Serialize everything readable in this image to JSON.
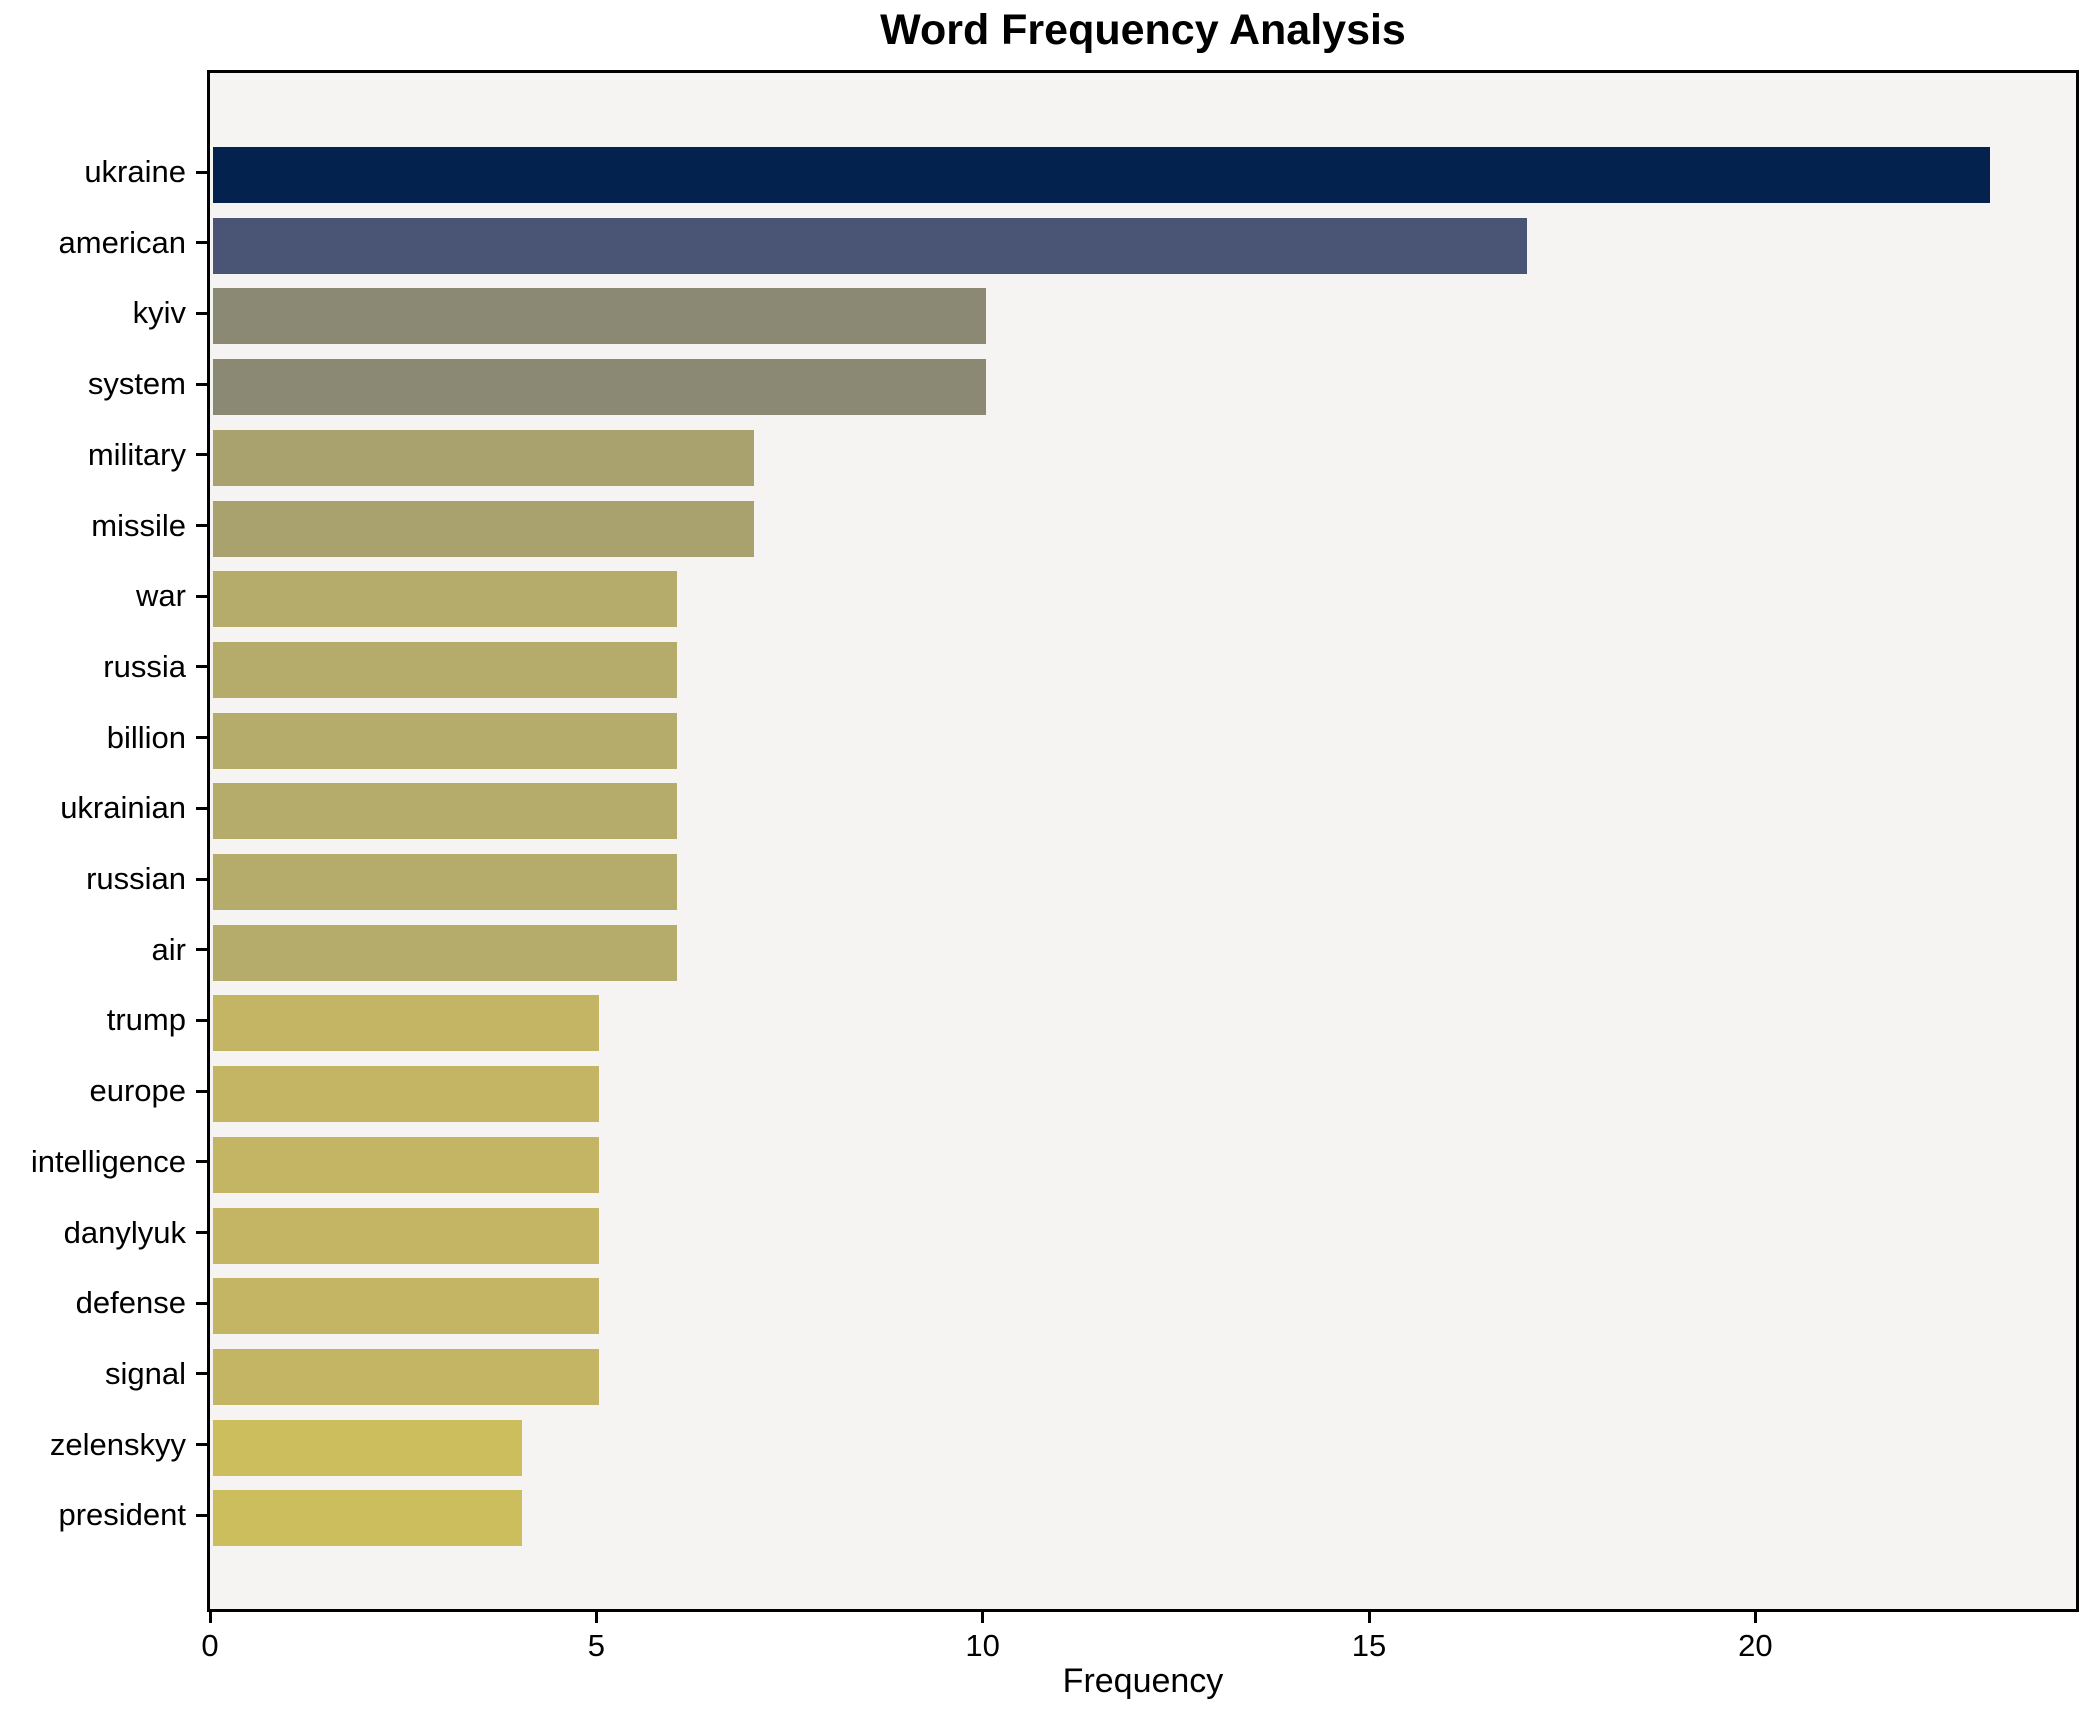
{
  "figure": {
    "background": "#ffffff",
    "plot_background": "#f5f4f2",
    "spine_color": "#000000",
    "text_color": "#000000"
  },
  "chart_data": {
    "type": "bar",
    "orientation": "horizontal",
    "title": "Word Frequency Analysis",
    "xlabel": "Frequency",
    "ylabel": "",
    "grid": false,
    "legend": null,
    "xlim": [
      0,
      24.15
    ],
    "xticks": [
      {
        "value": 0,
        "label": "0"
      },
      {
        "value": 5,
        "label": "5"
      },
      {
        "value": 10,
        "label": "10"
      },
      {
        "value": 15,
        "label": "15"
      },
      {
        "value": 20,
        "label": "20"
      }
    ],
    "categories": [
      "ukraine",
      "american",
      "kyiv",
      "system",
      "military",
      "missile",
      "war",
      "russia",
      "billion",
      "ukrainian",
      "russian",
      "air",
      "trump",
      "europe",
      "intelligence",
      "danylyuk",
      "defense",
      "signal",
      "zelenskyy",
      "president"
    ],
    "values": [
      23,
      17,
      10,
      10,
      7,
      7,
      6,
      6,
      6,
      6,
      6,
      6,
      5,
      5,
      5,
      5,
      5,
      5,
      4,
      4
    ],
    "bar_colors": [
      "#03224d",
      "#4a5474",
      "#8b8974",
      "#8b8974",
      "#a9a16e",
      "#a9a16e",
      "#b5ab6a",
      "#b5ab6a",
      "#b5ab6a",
      "#b5ab6a",
      "#b5ab6a",
      "#b5ab6a",
      "#c3b564",
      "#c3b564",
      "#c3b564",
      "#c3b564",
      "#c3b564",
      "#c3b564",
      "#ccbd5d",
      "#ccbd5d"
    ]
  }
}
